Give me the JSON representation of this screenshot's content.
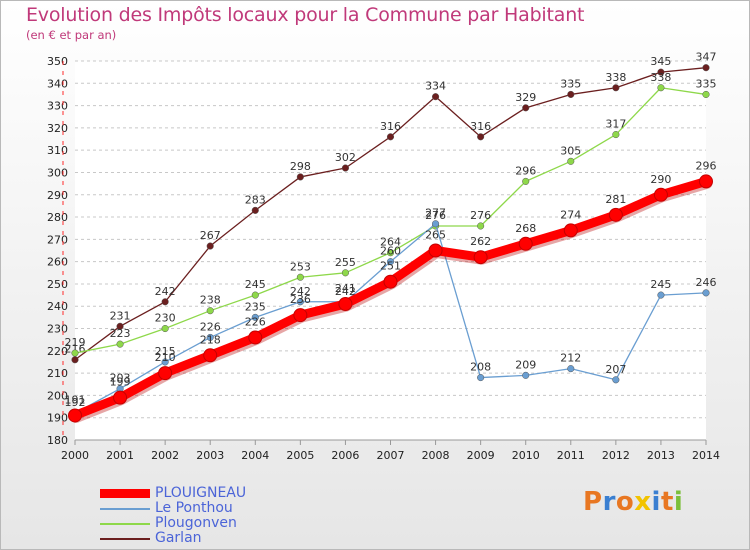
{
  "title": "Evolution des Impôts locaux pour la Commune par Habitant",
  "subtitle": "(en € et par an)",
  "logo": {
    "text": "Proxiti",
    "colors": [
      "#e87722",
      "#3a7fd1",
      "#e87722",
      "#f2c300",
      "#3a7fd1",
      "#e87722",
      "#7bbf3a"
    ]
  },
  "chart_data": {
    "type": "line",
    "x": [
      2000,
      2001,
      2002,
      2003,
      2004,
      2005,
      2006,
      2007,
      2008,
      2009,
      2010,
      2011,
      2012,
      2013,
      2014
    ],
    "ylim": [
      180,
      350
    ],
    "yticks": [
      180,
      190,
      200,
      210,
      220,
      230,
      240,
      250,
      260,
      270,
      280,
      290,
      300,
      310,
      320,
      330,
      340,
      350
    ],
    "grid": "horizontal dashed",
    "legend_position": "bottom-left",
    "series": [
      {
        "name": "Garlan",
        "color": "#6b1f1f",
        "values": [
          216,
          231,
          242,
          267,
          283,
          298,
          302,
          316,
          334,
          316,
          329,
          335,
          338,
          345,
          347
        ]
      },
      {
        "name": "Plougonven",
        "color": "#8ed84a",
        "values": [
          219,
          223,
          230,
          238,
          245,
          253,
          255,
          264,
          276,
          276,
          296,
          305,
          317,
          338,
          335
        ]
      },
      {
        "name": "Le Ponthou",
        "color": "#6a9ed1",
        "values": [
          192,
          203,
          215,
          226,
          235,
          242,
          242,
          260,
          277,
          208,
          209,
          212,
          207,
          245,
          246
        ]
      },
      {
        "name": "PLOUIGNEAU",
        "color": "#ff0000",
        "values": [
          191,
          199,
          210,
          218,
          226,
          236,
          241,
          251,
          265,
          262,
          268,
          274,
          281,
          290,
          296
        ]
      }
    ],
    "legend": [
      {
        "name": "PLOUIGNEAU",
        "color": "#ff0000"
      },
      {
        "name": "Le Ponthou",
        "color": "#6a9ed1"
      },
      {
        "name": "Plougonven",
        "color": "#8ed84a"
      },
      {
        "name": "Garlan",
        "color": "#6b1f1f"
      }
    ]
  }
}
